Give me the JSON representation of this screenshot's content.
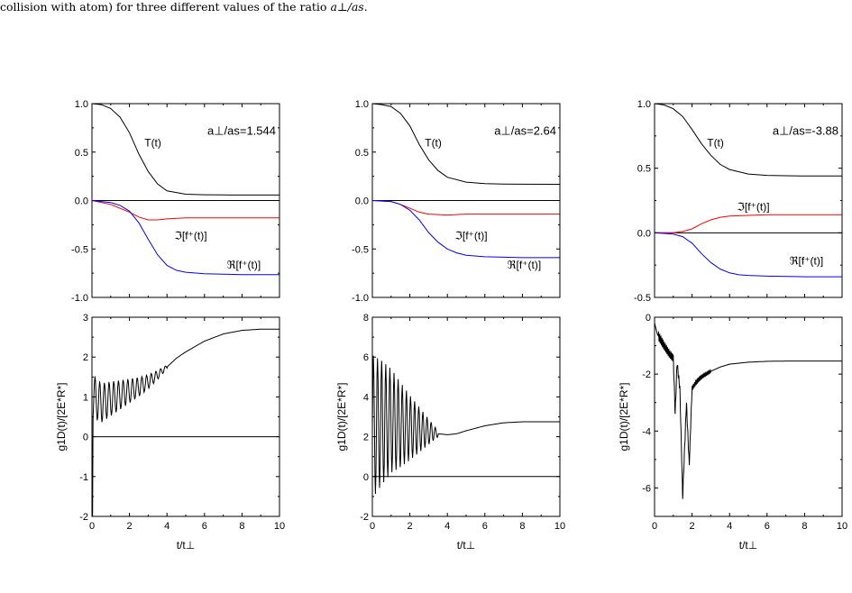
{
  "caption": {
    "text": "collision with atom) for three different values of the ratio",
    "math": "a⊥/as",
    "end": "."
  },
  "chart_data": [
    {
      "type": "line",
      "panel": "top-left",
      "annotation": "a⊥/as=1.544",
      "xlim": [
        0,
        10
      ],
      "ylim": [
        -1.0,
        1.0
      ],
      "yticks": [
        "1.0",
        "0.5",
        "0.0",
        "-0.5",
        "-1.0"
      ],
      "grid": false,
      "series": [
        {
          "name": "T(t)",
          "color": "#000000",
          "x": [
            0,
            0.5,
            1,
            1.5,
            2,
            2.5,
            3,
            3.5,
            4,
            5,
            6,
            7,
            8,
            10
          ],
          "y": [
            1.0,
            0.99,
            0.95,
            0.86,
            0.7,
            0.48,
            0.3,
            0.17,
            0.1,
            0.065,
            0.06,
            0.058,
            0.057,
            0.057
          ]
        },
        {
          "name": "ℑ[f⁺(t)]",
          "color": "#ff0000",
          "x": [
            0,
            1,
            2,
            2.5,
            3,
            3.5,
            4,
            5,
            6,
            8,
            10
          ],
          "y": [
            0,
            -0.04,
            -0.12,
            -0.17,
            -0.2,
            -0.2,
            -0.19,
            -0.18,
            -0.18,
            -0.18,
            -0.18
          ]
        },
        {
          "name": "ℜ[f⁺(t)]",
          "color": "#0000ff",
          "x": [
            0,
            1,
            1.5,
            2,
            2.5,
            3,
            3.5,
            4,
            4.5,
            5,
            6,
            7,
            8,
            10
          ],
          "y": [
            0,
            -0.02,
            -0.05,
            -0.11,
            -0.23,
            -0.4,
            -0.56,
            -0.67,
            -0.72,
            -0.74,
            -0.755,
            -0.76,
            -0.765,
            -0.765
          ]
        }
      ]
    },
    {
      "type": "line",
      "panel": "top-middle",
      "annotation": "a⊥/as=2.64",
      "xlim": [
        0,
        10
      ],
      "ylim": [
        -1.0,
        1.0
      ],
      "yticks": [
        "1.0",
        "0.5",
        "0.0",
        "-0.5",
        "-1.0"
      ],
      "grid": false,
      "series": [
        {
          "name": "T(t)",
          "color": "#000000",
          "x": [
            0,
            0.5,
            1,
            1.5,
            2,
            2.5,
            3,
            3.5,
            4,
            5,
            6,
            7,
            8,
            10
          ],
          "y": [
            1.0,
            0.99,
            0.97,
            0.9,
            0.77,
            0.58,
            0.42,
            0.31,
            0.24,
            0.19,
            0.175,
            0.17,
            0.168,
            0.167
          ]
        },
        {
          "name": "ℑ[f⁺(t)]",
          "color": "#ff0000",
          "x": [
            0,
            1,
            1.5,
            2,
            2.5,
            3,
            4,
            5,
            6,
            8,
            10
          ],
          "y": [
            0,
            -0.01,
            -0.04,
            -0.08,
            -0.12,
            -0.14,
            -0.15,
            -0.14,
            -0.14,
            -0.14,
            -0.14
          ]
        },
        {
          "name": "ℜ[f⁺(t)]",
          "color": "#0000ff",
          "x": [
            0,
            1,
            1.5,
            2,
            2.5,
            3,
            3.5,
            4,
            4.5,
            5,
            6,
            7,
            8,
            10
          ],
          "y": [
            0,
            -0.01,
            -0.04,
            -0.1,
            -0.2,
            -0.33,
            -0.43,
            -0.5,
            -0.54,
            -0.565,
            -0.58,
            -0.585,
            -0.59,
            -0.59
          ]
        }
      ]
    },
    {
      "type": "line",
      "panel": "top-right",
      "annotation": "a⊥/as=-3.88",
      "xlim": [
        0,
        10
      ],
      "ylim": [
        -0.5,
        1.0
      ],
      "yticks": [
        "1.0",
        "0.5",
        "0.0",
        "-0.5"
      ],
      "grid": false,
      "series": [
        {
          "name": "T(t)",
          "color": "#000000",
          "x": [
            0,
            0.5,
            1,
            1.5,
            2,
            2.5,
            3,
            3.5,
            4,
            5,
            6,
            7,
            8,
            10
          ],
          "y": [
            1.0,
            0.99,
            0.96,
            0.9,
            0.8,
            0.69,
            0.6,
            0.53,
            0.49,
            0.455,
            0.445,
            0.442,
            0.44,
            0.44
          ]
        },
        {
          "name": "ℑ[f⁺(t)]",
          "color": "#ff0000",
          "x": [
            0,
            1,
            1.5,
            2,
            2.5,
            3,
            3.5,
            4,
            5,
            6,
            8,
            10
          ],
          "y": [
            0,
            0.0,
            0.01,
            0.03,
            0.07,
            0.1,
            0.12,
            0.13,
            0.135,
            0.14,
            0.14,
            0.14
          ]
        },
        {
          "name": "ℜ[f⁺(t)]",
          "color": "#0000ff",
          "x": [
            0,
            1,
            1.5,
            2,
            2.5,
            3,
            3.5,
            4,
            4.5,
            5,
            6,
            8,
            10
          ],
          "y": [
            0,
            -0.01,
            -0.03,
            -0.08,
            -0.16,
            -0.23,
            -0.28,
            -0.31,
            -0.325,
            -0.33,
            -0.335,
            -0.34,
            -0.34
          ]
        }
      ]
    },
    {
      "type": "line",
      "panel": "bottom-left",
      "xlabel": "t/t⊥",
      "ylabel": "g1D(t)/[2E*R*]",
      "xlim": [
        0,
        10
      ],
      "ylim": [
        -2,
        3
      ],
      "xticks": [
        "0",
        "2",
        "4",
        "6",
        "8",
        "10"
      ],
      "yticks": [
        "3",
        "2",
        "1",
        "0",
        "-1",
        "-2"
      ],
      "grid": false,
      "series": [
        {
          "name": "",
          "color": "#000000",
          "x": [
            0,
            0.03,
            0.06,
            0.1,
            0.5,
            1.0,
            1.5,
            2.0,
            2.5,
            3.0,
            3.5,
            4.0,
            4.5,
            5,
            6,
            7,
            8,
            9,
            10
          ],
          "y": [
            0,
            -2.0,
            0.5,
            1.0,
            0.85,
            0.95,
            1.05,
            1.15,
            1.25,
            1.38,
            1.55,
            1.75,
            1.97,
            2.13,
            2.4,
            2.58,
            2.67,
            2.7,
            2.7
          ],
          "oscillation": {
            "x_start": 0.1,
            "x_end": 4.0,
            "amplitude_start": 0.55,
            "amplitude_end": 0.05,
            "period": 0.25
          }
        },
        {
          "name": "",
          "color": "#000000",
          "x": [
            0,
            10
          ],
          "y": [
            0,
            0
          ]
        }
      ]
    },
    {
      "type": "line",
      "panel": "bottom-middle",
      "xlabel": "t/t⊥",
      "ylabel": "g1D(t)/[2E*R*]",
      "xlim": [
        0,
        10
      ],
      "ylim": [
        -2,
        8
      ],
      "xticks": [
        "0",
        "2",
        "4",
        "6",
        "8",
        "10"
      ],
      "yticks": [
        "8",
        "6",
        "4",
        "2",
        "0",
        "-2"
      ],
      "grid": false,
      "series": [
        {
          "name": "",
          "color": "#000000",
          "x": [
            0,
            0.5,
            1.0,
            1.5,
            2.0,
            2.5,
            3.0,
            3.5,
            4.0,
            4.5,
            5,
            6,
            7,
            8,
            9,
            10
          ],
          "y": [
            2.5,
            2.7,
            2.8,
            2.6,
            2.45,
            2.35,
            2.25,
            2.15,
            2.1,
            2.15,
            2.3,
            2.55,
            2.7,
            2.75,
            2.75,
            2.75
          ],
          "oscillation": {
            "x_start": 0.0,
            "x_end": 3.5,
            "amplitude_start": 3.6,
            "amplitude_end": 0.15,
            "period": 0.22
          }
        },
        {
          "name": "",
          "color": "#000000",
          "x": [
            0,
            10
          ],
          "y": [
            0,
            0
          ]
        }
      ]
    },
    {
      "type": "line",
      "panel": "bottom-right",
      "xlabel": "t/t⊥",
      "ylabel": "g1D(t)/[2E*R*]",
      "xlim": [
        0,
        10
      ],
      "ylim": [
        -7,
        0
      ],
      "xticks": [
        "0",
        "2",
        "4",
        "6",
        "8",
        "10"
      ],
      "yticks": [
        "0",
        "-2",
        "-4",
        "-6"
      ],
      "grid": false,
      "series": [
        {
          "name": "",
          "color": "#000000",
          "x": [
            0,
            0.15,
            0.5,
            0.8,
            1.0,
            1.1,
            1.2,
            1.35,
            1.5,
            1.7,
            1.85,
            2.0,
            2.2,
            2.5,
            3.0,
            3.5,
            4.0,
            5,
            6,
            7,
            8,
            10
          ],
          "y": [
            -0.2,
            -0.6,
            -1.0,
            -1.3,
            -1.45,
            -3.4,
            -1.6,
            -2.5,
            -6.3,
            -3.0,
            -5.2,
            -2.5,
            -2.3,
            -2.1,
            -1.9,
            -1.75,
            -1.65,
            -1.58,
            -1.55,
            -1.54,
            -1.54,
            -1.54
          ],
          "oscillation": {
            "x_start": 0.2,
            "x_end": 3.0,
            "amplitude_start": 0.15,
            "amplitude_end": 0.05,
            "period": 0.06
          }
        }
      ]
    }
  ]
}
